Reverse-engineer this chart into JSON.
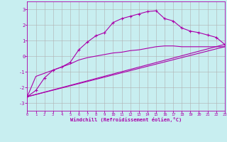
{
  "xlabel": "Windchill (Refroidissement éolien,°C)",
  "background_color": "#c8eef0",
  "grid_color": "#b0b0b0",
  "line_color": "#aa00aa",
  "xlim": [
    0,
    23
  ],
  "ylim": [
    -3.5,
    3.5
  ],
  "xticks": [
    0,
    1,
    2,
    3,
    4,
    5,
    6,
    7,
    8,
    9,
    10,
    11,
    12,
    13,
    14,
    15,
    16,
    17,
    18,
    19,
    20,
    21,
    22,
    23
  ],
  "yticks": [
    -3,
    -2,
    -1,
    0,
    1,
    2,
    3
  ],
  "series": [
    {
      "x": [
        0,
        1,
        2,
        3,
        4,
        5,
        6,
        7,
        8,
        9,
        10,
        11,
        12,
        13,
        14,
        15,
        16,
        17,
        18,
        19,
        20,
        21,
        22,
        23
      ],
      "y": [
        -2.6,
        -2.2,
        -1.4,
        -0.9,
        -0.7,
        -0.4,
        0.4,
        0.9,
        1.3,
        1.5,
        2.15,
        2.4,
        2.55,
        2.7,
        2.85,
        2.9,
        2.4,
        2.25,
        1.8,
        1.6,
        1.5,
        1.35,
        1.2,
        0.75
      ],
      "marker": true
    },
    {
      "x": [
        0,
        1,
        2,
        3,
        4,
        5,
        6,
        7,
        8,
        9,
        10,
        11,
        12,
        13,
        14,
        15,
        16,
        17,
        18,
        19,
        20,
        21,
        22,
        23
      ],
      "y": [
        -2.6,
        -1.3,
        -1.1,
        -0.9,
        -0.7,
        -0.5,
        -0.25,
        -0.1,
        0.0,
        0.1,
        0.2,
        0.25,
        0.35,
        0.4,
        0.5,
        0.6,
        0.65,
        0.65,
        0.6,
        0.6,
        0.6,
        0.6,
        0.6,
        0.6
      ],
      "marker": false
    },
    {
      "x": [
        0,
        23
      ],
      "y": [
        -2.6,
        0.75
      ],
      "marker": false
    },
    {
      "x": [
        0,
        23
      ],
      "y": [
        -2.6,
        0.6
      ],
      "marker": false
    }
  ]
}
